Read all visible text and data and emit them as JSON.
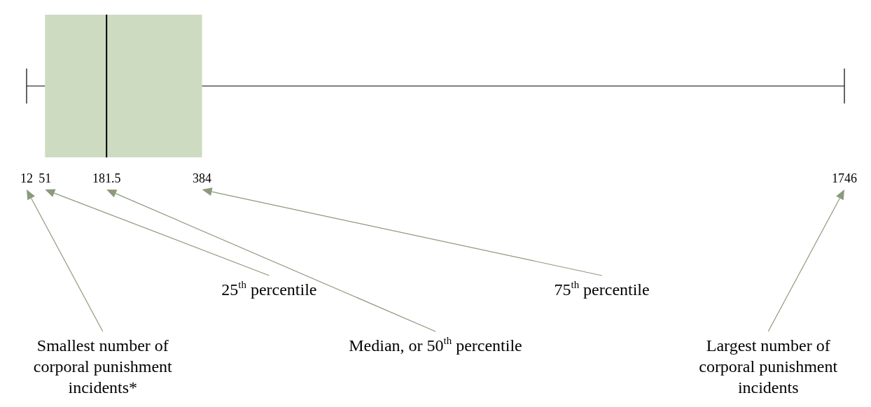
{
  "chart_data": {
    "type": "box",
    "orientation": "horizontal",
    "categories": [
      null
    ],
    "boxes": [
      {
        "low": 12,
        "q1": 51,
        "median": 181.5,
        "q3": 384,
        "high": 1746
      }
    ],
    "color": "#cddcc1",
    "xlim": [
      12,
      1746
    ],
    "xticks": [
      12,
      51,
      181.5,
      384,
      1746
    ],
    "tick_labels": "x",
    "annotations": [
      "Smallest number of corporal punishment incidents*",
      "25$^{th}$ percentile",
      "Median, or 50$^{th}$ percentile",
      "75$^{th}$ percentile",
      "Largest number of corporal punishment incidents"
    ]
  }
}
